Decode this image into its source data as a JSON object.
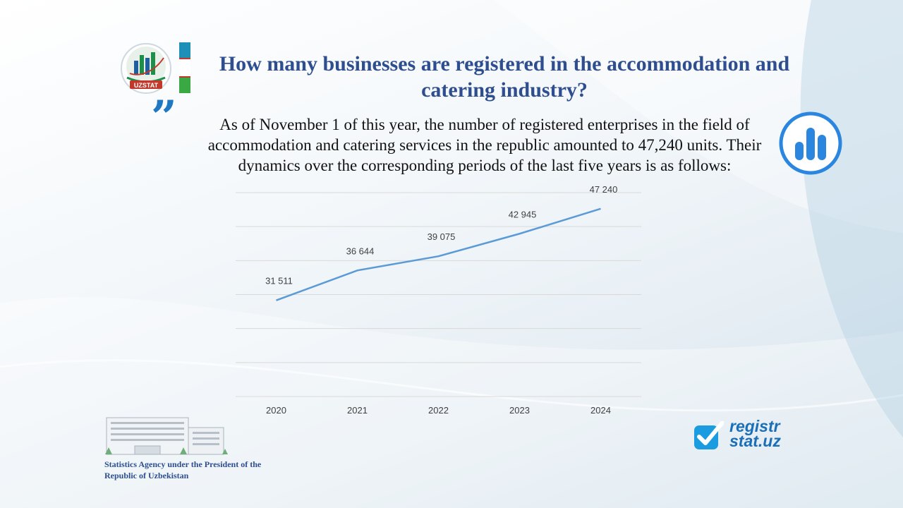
{
  "header": {
    "title": "How many businesses are registered in the accommodation and catering industry?",
    "logo_text": "UZSTAT"
  },
  "body": {
    "paragraph": "As of November 1 of this year, the number of registered enterprises in the field of accommodation and catering services in the republic amounted to 47,240 units. Their dynamics over the corresponding periods of the last five years is as follows:"
  },
  "colors": {
    "title": "#2e4e8f",
    "line": "#5b9bd5",
    "accent": "#1e78c2"
  },
  "icons": [
    "uzstat-logo-icon",
    "flag-icon",
    "quote-icon",
    "bar-chart-icon",
    "building-icon",
    "checkmark-icon"
  ],
  "chart_data": {
    "type": "line",
    "categories": [
      "2020",
      "2021",
      "2022",
      "2023",
      "2024"
    ],
    "series": [
      {
        "values": [
          31511,
          36644,
          39075,
          42945,
          47240
        ]
      }
    ],
    "data_labels": [
      "31 511",
      "36 644",
      "39 075",
      "42 945",
      "47 240"
    ],
    "ylim": [
      15000,
      50000
    ],
    "grid": true,
    "title": "",
    "xlabel": "",
    "ylabel": ""
  },
  "footer": {
    "agency": "Statistics Agency under the President of the Republic of Uzbekistan",
    "brand_line1": "registr",
    "brand_line2": "stat.uz"
  }
}
